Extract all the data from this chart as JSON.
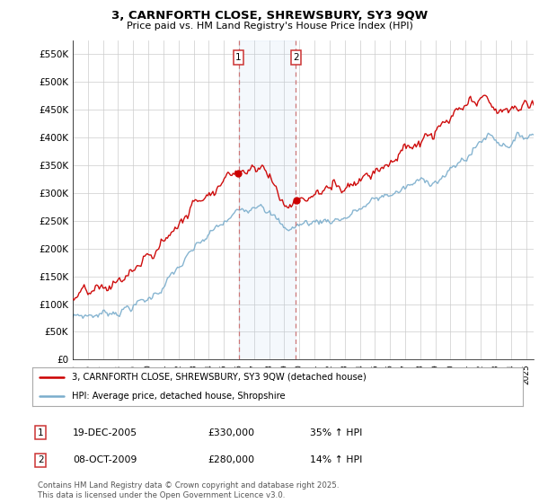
{
  "title": "3, CARNFORTH CLOSE, SHREWSBURY, SY3 9QW",
  "subtitle": "Price paid vs. HM Land Registry's House Price Index (HPI)",
  "ylabel_ticks": [
    0,
    50000,
    100000,
    150000,
    200000,
    250000,
    300000,
    350000,
    400000,
    450000,
    500000,
    550000
  ],
  "ylabel_labels": [
    "£0",
    "£50K",
    "£100K",
    "£150K",
    "£200K",
    "£250K",
    "£300K",
    "£350K",
    "£400K",
    "£450K",
    "£500K",
    "£550K"
  ],
  "ylim": [
    0,
    575000
  ],
  "xlim_start": 1995.0,
  "xlim_end": 2025.5,
  "xtick_years": [
    1995,
    1996,
    1997,
    1998,
    1999,
    2000,
    2001,
    2002,
    2003,
    2004,
    2005,
    2006,
    2007,
    2008,
    2009,
    2010,
    2011,
    2012,
    2013,
    2014,
    2015,
    2016,
    2017,
    2018,
    2019,
    2020,
    2021,
    2022,
    2023,
    2024,
    2025
  ],
  "marker1_x": 2005.97,
  "marker1_label": "1",
  "marker1_date": "19-DEC-2005",
  "marker1_price": "£330,000",
  "marker1_hpi": "35% ↑ HPI",
  "marker2_x": 2009.77,
  "marker2_label": "2",
  "marker2_date": "08-OCT-2009",
  "marker2_price": "£280,000",
  "marker2_hpi": "14% ↑ HPI",
  "legend_line1": "3, CARNFORTH CLOSE, SHREWSBURY, SY3 9QW (detached house)",
  "legend_line2": "HPI: Average price, detached house, Shropshire",
  "copyright": "Contains HM Land Registry data © Crown copyright and database right 2025.\nThis data is licensed under the Open Government Licence v3.0.",
  "line_color_red": "#cc0000",
  "line_color_blue": "#7aadcc",
  "marker_box_color": "#cc3333",
  "vline_color": "#cc7777",
  "bg_color": "#ffffff",
  "grid_color": "#cccccc"
}
